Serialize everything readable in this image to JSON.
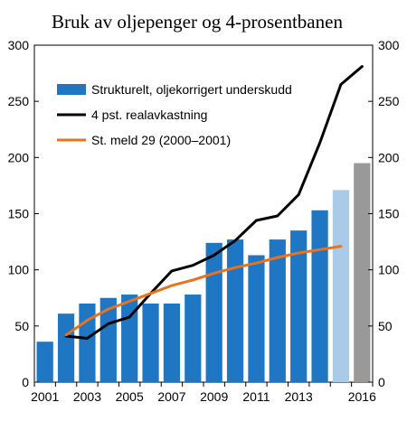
{
  "chart_data": {
    "type": "bar",
    "title": "Bruk av oljepenger og 4-prosentbanen",
    "x": [
      2001,
      2002,
      2003,
      2004,
      2005,
      2006,
      2007,
      2008,
      2009,
      2010,
      2011,
      2012,
      2013,
      2014,
      2015,
      2016
    ],
    "x_tick_labels": [
      "2001",
      "2003",
      "2005",
      "2007",
      "2009",
      "2011",
      "2013",
      "2016"
    ],
    "y_ticks": [
      0,
      50,
      100,
      150,
      200,
      250,
      300
    ],
    "ylim": [
      0,
      300
    ],
    "xlabel": "",
    "ylabel": "",
    "grid": false,
    "legend_position": "top-left",
    "series": [
      {
        "name": "Strukturelt, oljekorrigert underskudd",
        "type": "bar",
        "color": "#1f77c4",
        "values": [
          36,
          61,
          70,
          75,
          78,
          70,
          70,
          78,
          124,
          127,
          113,
          127,
          135,
          153,
          171,
          195
        ],
        "bar_colors": [
          "#1f77c4",
          "#1f77c4",
          "#1f77c4",
          "#1f77c4",
          "#1f77c4",
          "#1f77c4",
          "#1f77c4",
          "#1f77c4",
          "#1f77c4",
          "#1f77c4",
          "#1f77c4",
          "#1f77c4",
          "#1f77c4",
          "#1f77c4",
          "#a9cbe8",
          "#999999"
        ]
      },
      {
        "name": "4 pst. realavkastning",
        "type": "line",
        "color": "#000000",
        "points": [
          [
            2002,
            41
          ],
          [
            2003,
            39
          ],
          [
            2004,
            52
          ],
          [
            2005,
            58
          ],
          [
            2006,
            79
          ],
          [
            2007,
            99
          ],
          [
            2008,
            104
          ],
          [
            2009,
            113
          ],
          [
            2010,
            126
          ],
          [
            2011,
            144
          ],
          [
            2012,
            148
          ],
          [
            2013,
            167
          ],
          [
            2014,
            213
          ],
          [
            2015,
            265
          ],
          [
            2016,
            281
          ]
        ]
      },
      {
        "name": "St. meld 29 (2000–2001)",
        "type": "line",
        "color": "#e8731f",
        "points": [
          [
            2002,
            42
          ],
          [
            2003,
            55
          ],
          [
            2004,
            65
          ],
          [
            2005,
            72
          ],
          [
            2006,
            79
          ],
          [
            2007,
            86
          ],
          [
            2008,
            91
          ],
          [
            2009,
            97
          ],
          [
            2010,
            102
          ],
          [
            2011,
            106
          ],
          [
            2012,
            111
          ],
          [
            2013,
            115
          ],
          [
            2014,
            118
          ],
          [
            2015,
            121
          ]
        ]
      }
    ]
  }
}
